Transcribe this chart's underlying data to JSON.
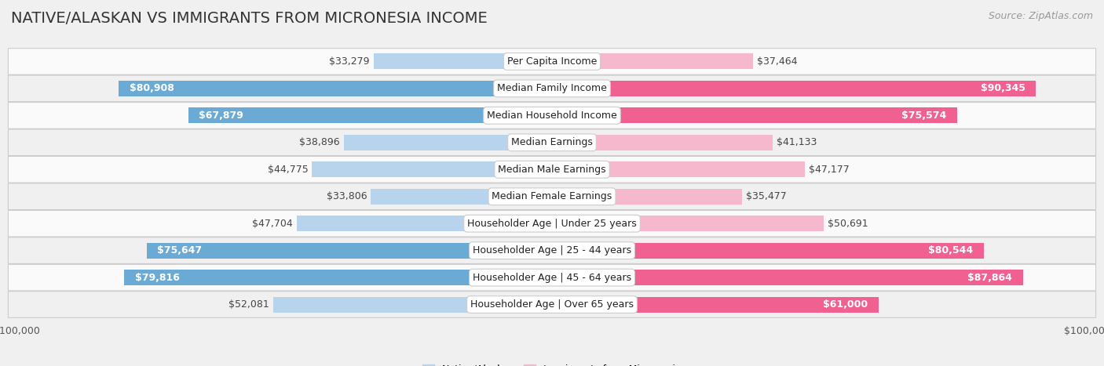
{
  "title": "NATIVE/ALASKAN VS IMMIGRANTS FROM MICRONESIA INCOME",
  "source": "Source: ZipAtlas.com",
  "categories": [
    "Per Capita Income",
    "Median Family Income",
    "Median Household Income",
    "Median Earnings",
    "Median Male Earnings",
    "Median Female Earnings",
    "Householder Age | Under 25 years",
    "Householder Age | 25 - 44 years",
    "Householder Age | 45 - 64 years",
    "Householder Age | Over 65 years"
  ],
  "native_values": [
    33279,
    80908,
    67879,
    38896,
    44775,
    33806,
    47704,
    75647,
    79816,
    52081
  ],
  "immigrant_values": [
    37464,
    90345,
    75574,
    41133,
    47177,
    35477,
    50691,
    80544,
    87864,
    61000
  ],
  "native_labels": [
    "$33,279",
    "$80,908",
    "$67,879",
    "$38,896",
    "$44,775",
    "$33,806",
    "$47,704",
    "$75,647",
    "$79,816",
    "$52,081"
  ],
  "immigrant_labels": [
    "$37,464",
    "$90,345",
    "$75,574",
    "$41,133",
    "$47,177",
    "$35,477",
    "$50,691",
    "$80,544",
    "$87,864",
    "$61,000"
  ],
  "native_color_light": "#b8d4ec",
  "native_color_dark": "#6aaad4",
  "immigrant_color_light": "#f5b8cc",
  "immigrant_color_dark": "#f06090",
  "native_dark_threshold": 60000,
  "immigrant_dark_threshold": 60000,
  "max_value": 100000,
  "bg_color": "#f0f0f0",
  "row_colors": [
    "#fafafa",
    "#f0f0f0"
  ],
  "legend_native": "Native/Alaskan",
  "legend_immigrant": "Immigrants from Micronesia",
  "title_fontsize": 14,
  "source_fontsize": 9,
  "label_fontsize": 9,
  "category_fontsize": 9,
  "axis_label_fontsize": 9,
  "title_color": "#333333"
}
